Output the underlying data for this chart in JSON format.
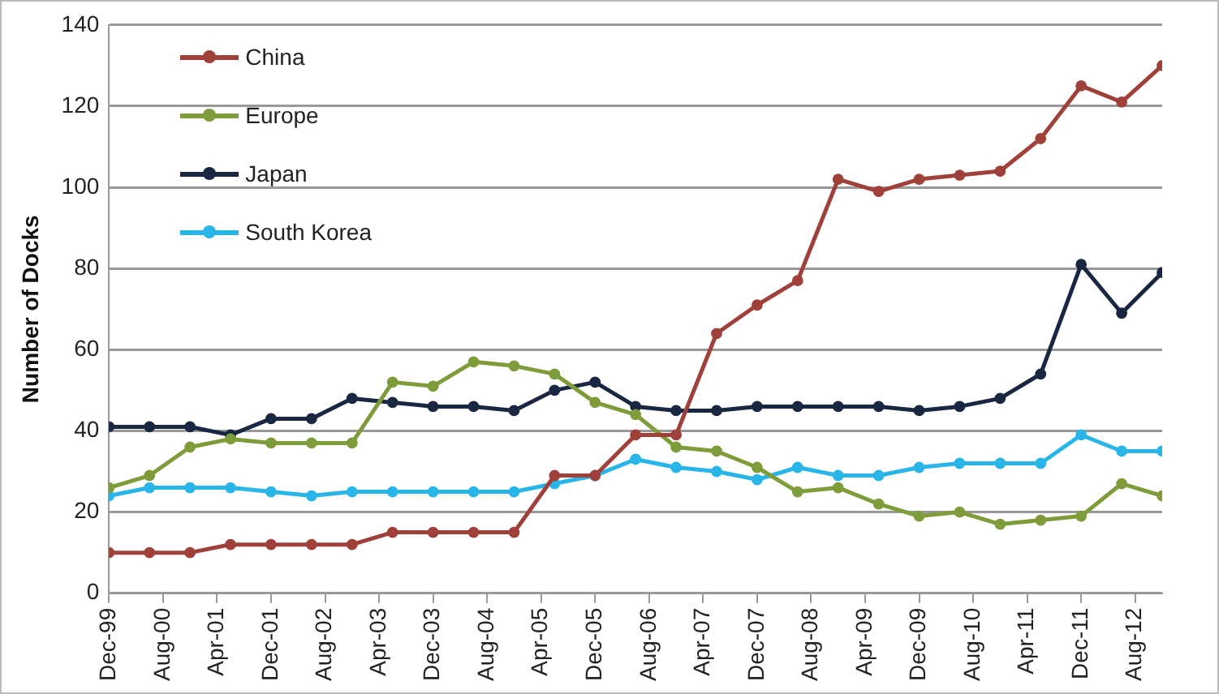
{
  "chart_data": {
    "type": "line",
    "ylabel": "Number of Docks",
    "x": [
      "1999-12",
      "2000-06",
      "2000-12",
      "2001-06",
      "2001-12",
      "2002-06",
      "2002-12",
      "2003-06",
      "2003-12",
      "2004-06",
      "2004-12",
      "2005-06",
      "2005-12",
      "2006-06",
      "2006-12",
      "2007-06",
      "2007-12",
      "2008-06",
      "2008-12",
      "2009-06",
      "2009-12",
      "2010-06",
      "2010-12",
      "2011-06",
      "2011-12",
      "2012-06",
      "2012-12"
    ],
    "series": [
      {
        "name": "China",
        "color": "#a0403a",
        "values": [
          10,
          10,
          10,
          12,
          12,
          12,
          12,
          15,
          15,
          15,
          15,
          29,
          29,
          39,
          39,
          64,
          71,
          77,
          102,
          99,
          102,
          103,
          104,
          112,
          125,
          121,
          130
        ]
      },
      {
        "name": "Europe",
        "color": "#7f9c3a",
        "values": [
          26,
          29,
          36,
          38,
          37,
          37,
          37,
          52,
          51,
          57,
          56,
          54,
          47,
          44,
          36,
          35,
          31,
          25,
          26,
          22,
          19,
          20,
          17,
          18,
          19,
          27,
          24
        ]
      },
      {
        "name": "Japan",
        "color": "#1a2742",
        "values": [
          41,
          41,
          41,
          39,
          43,
          43,
          48,
          47,
          46,
          46,
          45,
          50,
          52,
          46,
          45,
          45,
          46,
          46,
          46,
          46,
          45,
          46,
          48,
          54,
          81,
          69,
          79
        ]
      },
      {
        "name": "South Korea",
        "color": "#29b5e8",
        "values": [
          24,
          26,
          26,
          26,
          25,
          24,
          25,
          25,
          25,
          25,
          25,
          27,
          29,
          33,
          31,
          30,
          28,
          31,
          29,
          29,
          31,
          32,
          32,
          32,
          39,
          35,
          35
        ]
      }
    ],
    "xlim": [
      "1999-12",
      "2012-12"
    ],
    "xticks": [
      {
        "value": "1999-12",
        "label": "Dec-99"
      },
      {
        "value": "2000-08",
        "label": "Aug-00"
      },
      {
        "value": "2001-04",
        "label": "Apr-01"
      },
      {
        "value": "2001-12",
        "label": "Dec-01"
      },
      {
        "value": "2002-08",
        "label": "Aug-02"
      },
      {
        "value": "2003-04",
        "label": "Apr-03"
      },
      {
        "value": "2003-12",
        "label": "Dec-03"
      },
      {
        "value": "2004-08",
        "label": "Aug-04"
      },
      {
        "value": "2005-04",
        "label": "Apr-05"
      },
      {
        "value": "2005-12",
        "label": "Dec-05"
      },
      {
        "value": "2006-08",
        "label": "Aug-06"
      },
      {
        "value": "2007-04",
        "label": "Apr-07"
      },
      {
        "value": "2007-12",
        "label": "Dec-07"
      },
      {
        "value": "2008-08",
        "label": "Aug-08"
      },
      {
        "value": "2009-04",
        "label": "Apr-09"
      },
      {
        "value": "2009-12",
        "label": "Dec-09"
      },
      {
        "value": "2010-08",
        "label": "Aug-10"
      },
      {
        "value": "2011-04",
        "label": "Apr-11"
      },
      {
        "value": "2011-12",
        "label": "Dec-11"
      },
      {
        "value": "2012-08",
        "label": "Aug-12"
      }
    ],
    "ylim": [
      0,
      140
    ],
    "yticks": [
      0,
      20,
      40,
      60,
      80,
      100,
      120,
      140
    ],
    "grid": "y",
    "legend": "top left",
    "marker": "circle",
    "line_style": "solid"
  }
}
